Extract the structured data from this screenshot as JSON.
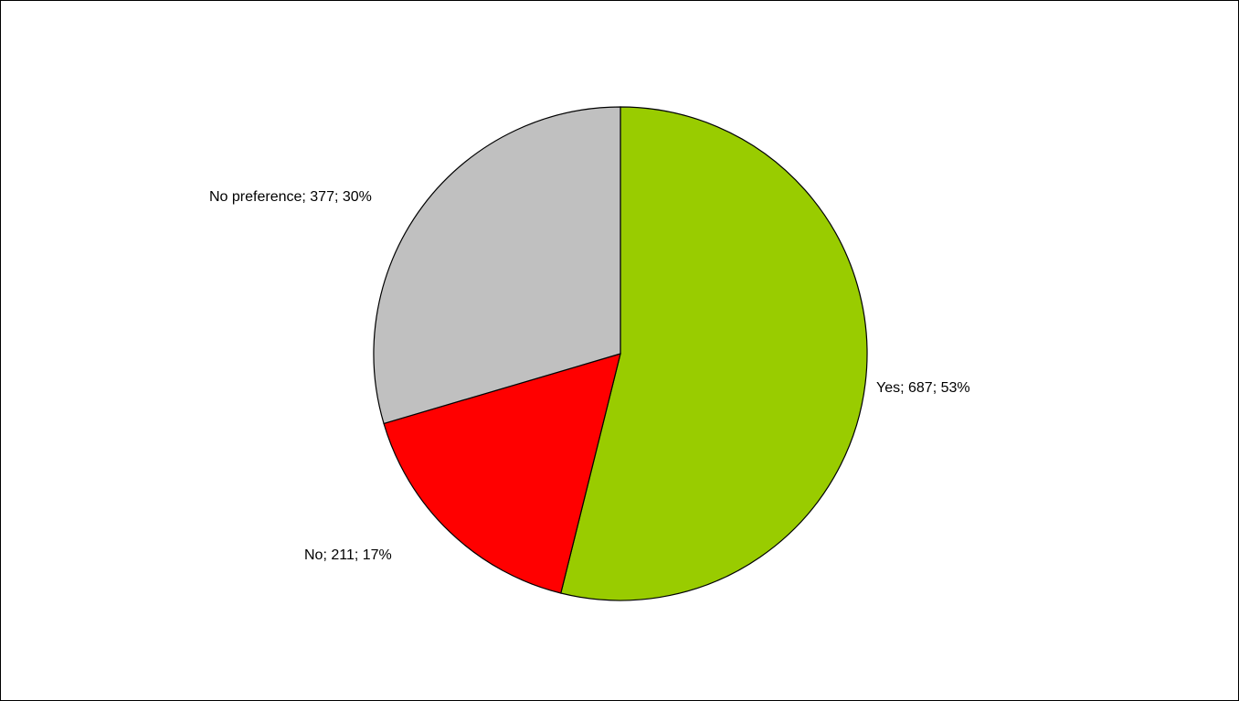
{
  "chart_data": {
    "type": "pie",
    "title": "",
    "start_angle_deg": 0,
    "direction": "clockwise",
    "slices": [
      {
        "label": "Yes",
        "value": 687,
        "percent": "53%",
        "color": "#99CC00",
        "data_label": "Yes; 687; 53%"
      },
      {
        "label": "No",
        "value": 211,
        "percent": "17%",
        "color": "#FF0000",
        "data_label": "No; 211; 17%"
      },
      {
        "label": "No preference",
        "value": 377,
        "percent": "30%",
        "color": "#C0C0C0",
        "data_label": "No preference; 377; 30%"
      }
    ]
  }
}
